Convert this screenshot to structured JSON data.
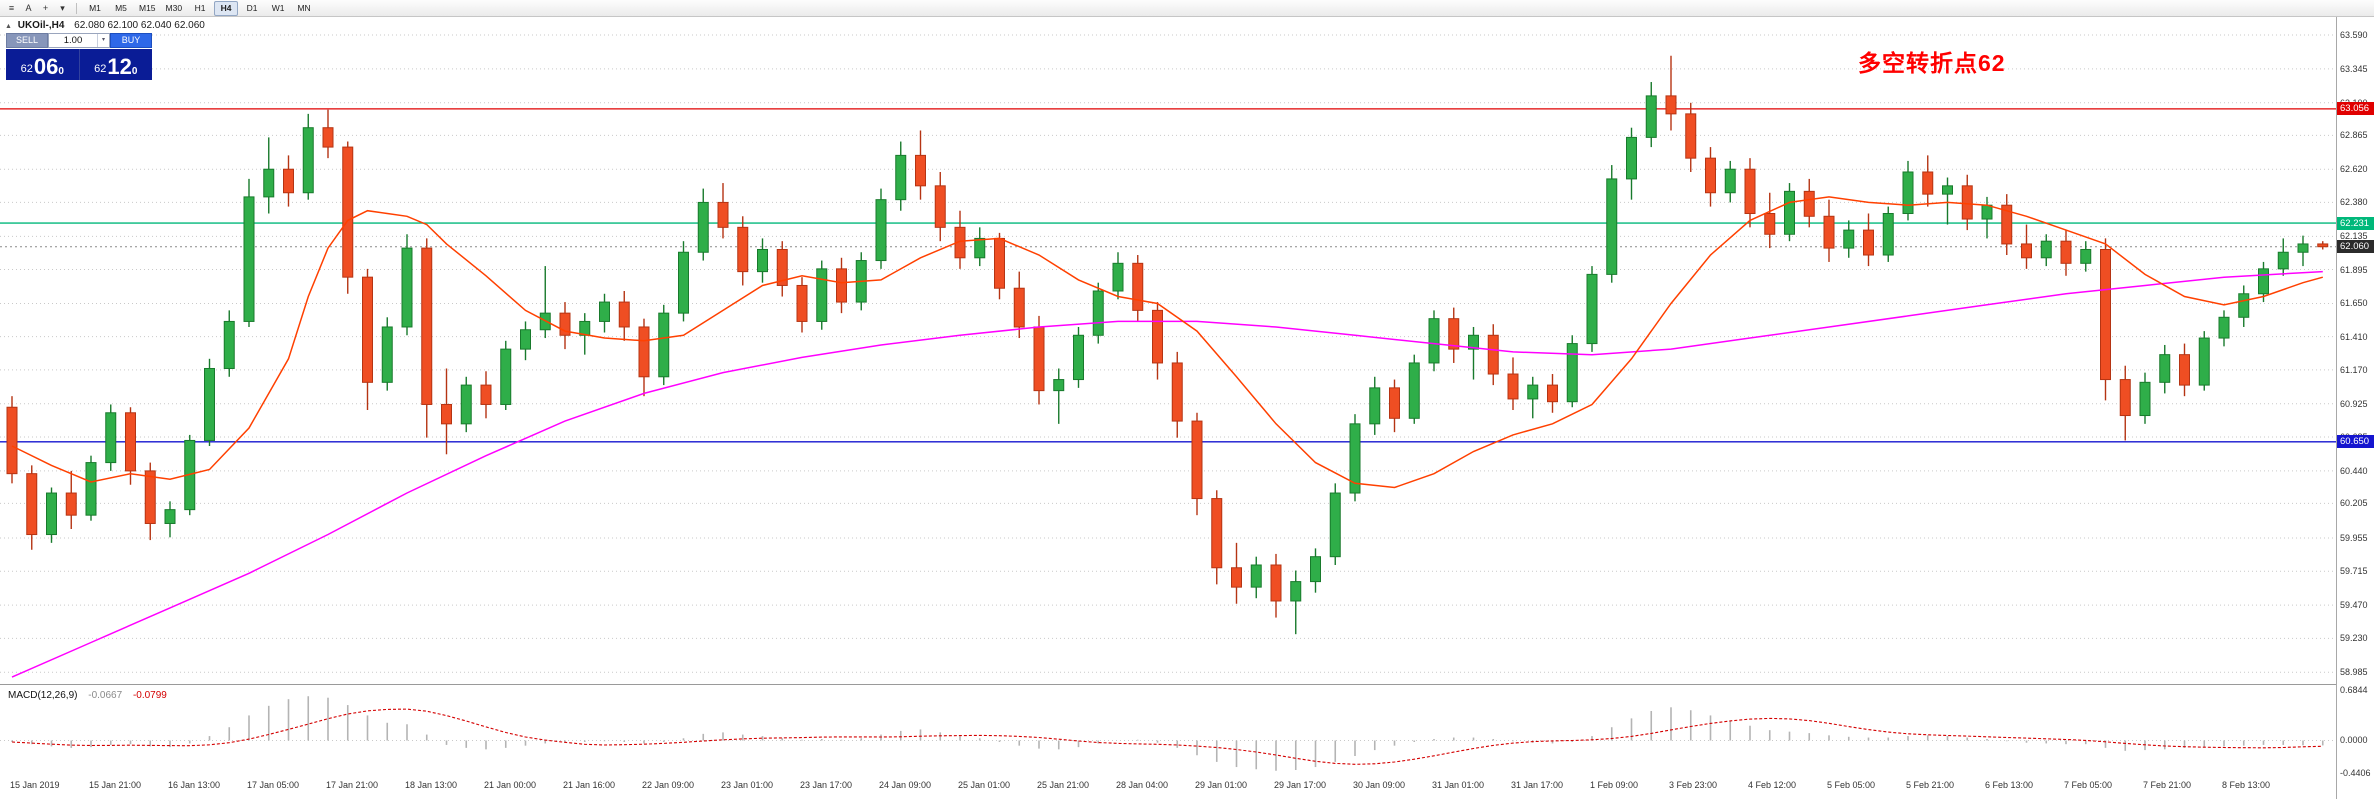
{
  "app": {
    "toolbar": {
      "icons": {
        "menu": "≡",
        "pointer": "A",
        "crosshair": "+",
        "dropdown": "▾"
      },
      "timeframes": [
        "M1",
        "M5",
        "M15",
        "M30",
        "H1",
        "H4",
        "D1",
        "W1",
        "MN"
      ],
      "active_timeframe": "H4"
    }
  },
  "chart": {
    "collapse_icon": "▲",
    "title": "UKOil-,H4",
    "ohlc_text": "62.080 62.100 62.040 62.060",
    "annotation": "多空转折点62",
    "one_click": {
      "sell_label": "SELL",
      "buy_label": "BUY",
      "volume": "1.00",
      "sell_price": {
        "fig": "62",
        "big": "06",
        "sup": "0"
      },
      "buy_price": {
        "fig": "62",
        "big": "12",
        "sup": "0"
      }
    }
  },
  "macd_panel": {
    "label": "MACD(12,26,9)",
    "value_main": "-0.0667",
    "value_signal": "-0.0799",
    "axis_labels": [
      "0.6844",
      "0.0000",
      "-0.4406"
    ]
  },
  "price_axis": {
    "labels": [
      "63.590",
      "63.345",
      "63.100",
      "62.865",
      "62.620",
      "62.380",
      "62.135",
      "61.895",
      "61.650",
      "61.410",
      "61.170",
      "60.925",
      "60.685",
      "60.440",
      "60.205",
      "59.955",
      "59.715",
      "59.470",
      "59.230",
      "58.985"
    ],
    "tags": [
      {
        "text": "63.056",
        "price": 63.056,
        "bg": "#e00000"
      },
      {
        "text": "62.231",
        "price": 62.231,
        "bg": "#00b87a"
      },
      {
        "text": "62.060",
        "price": 62.06,
        "bg": "#2b2b2b"
      },
      {
        "text": "60.650",
        "price": 60.65,
        "bg": "#1515cf"
      }
    ]
  },
  "time_axis": {
    "labels": [
      "15 Jan 2019",
      "15 Jan 21:00",
      "16 Jan 13:00",
      "17 Jan 05:00",
      "17 Jan 21:00",
      "18 Jan 13:00",
      "21 Jan 00:00",
      "21 Jan 16:00",
      "22 Jan 09:00",
      "23 Jan 01:00",
      "23 Jan 17:00",
      "24 Jan 09:00",
      "25 Jan 01:00",
      "25 Jan 21:00",
      "28 Jan 04:00",
      "29 Jan 01:00",
      "29 Jan 17:00",
      "30 Jan 09:00",
      "31 Jan 01:00",
      "31 Jan 17:00",
      "1 Feb 09:00",
      "3 Feb 23:00",
      "4 Feb 12:00",
      "5 Feb 05:00",
      "5 Feb 21:00",
      "6 Feb 13:00",
      "7 Feb 05:00",
      "7 Feb 21:00",
      "8 Feb 13:00"
    ]
  },
  "colors": {
    "bull": "#2fae49",
    "bull_border": "#187a2c",
    "bear": "#ef4e23",
    "bear_border": "#b53413",
    "ma_fast": "#ff4000",
    "ma_slow": "#ff00ff",
    "hline_red": "#e00000",
    "hline_green": "#00b87a",
    "hline_blue": "#1515cf",
    "current_price_line": "#8a8a8a",
    "grid": "#c9c9c9",
    "macd_hist": "#b4b4b4",
    "macd_signal": "#d40000",
    "annotation": "#ff0000"
  },
  "chart_data": {
    "type": "candlestick+macd",
    "symbol": "UKOil-",
    "period": "H4",
    "price_range_visible": [
      58.9,
      63.72
    ],
    "current_price": 62.06,
    "hlines": [
      {
        "price": 63.056,
        "color": "#e00000"
      },
      {
        "price": 62.231,
        "color": "#00b87a"
      },
      {
        "price": 60.65,
        "color": "#1515cf"
      }
    ],
    "candles": [
      [
        60.9,
        60.98,
        60.35,
        60.42
      ],
      [
        60.42,
        60.48,
        59.87,
        59.98
      ],
      [
        59.98,
        60.32,
        59.92,
        60.28
      ],
      [
        60.28,
        60.44,
        60.02,
        60.12
      ],
      [
        60.12,
        60.55,
        60.08,
        60.5
      ],
      [
        60.5,
        60.92,
        60.44,
        60.86
      ],
      [
        60.86,
        60.9,
        60.34,
        60.44
      ],
      [
        60.44,
        60.5,
        59.94,
        60.06
      ],
      [
        60.06,
        60.22,
        59.96,
        60.16
      ],
      [
        60.16,
        60.7,
        60.12,
        60.66
      ],
      [
        60.66,
        61.25,
        60.62,
        61.18
      ],
      [
        61.18,
        61.6,
        61.12,
        61.52
      ],
      [
        61.52,
        62.55,
        61.48,
        62.42
      ],
      [
        62.42,
        62.85,
        62.3,
        62.62
      ],
      [
        62.62,
        62.72,
        62.35,
        62.45
      ],
      [
        62.45,
        63.02,
        62.4,
        62.92
      ],
      [
        62.92,
        63.05,
        62.7,
        62.78
      ],
      [
        62.78,
        62.82,
        61.72,
        61.84
      ],
      [
        61.84,
        61.9,
        60.88,
        61.08
      ],
      [
        61.08,
        61.55,
        61.02,
        61.48
      ],
      [
        61.48,
        62.15,
        61.42,
        62.05
      ],
      [
        62.05,
        62.12,
        60.68,
        60.92
      ],
      [
        60.92,
        61.18,
        60.56,
        60.78
      ],
      [
        60.78,
        61.12,
        60.72,
        61.06
      ],
      [
        61.06,
        61.16,
        60.82,
        60.92
      ],
      [
        60.92,
        61.38,
        60.88,
        61.32
      ],
      [
        61.32,
        61.52,
        61.24,
        61.46
      ],
      [
        61.46,
        61.92,
        61.4,
        61.58
      ],
      [
        61.58,
        61.66,
        61.32,
        61.42
      ],
      [
        61.42,
        61.58,
        61.28,
        61.52
      ],
      [
        61.52,
        61.72,
        61.44,
        61.66
      ],
      [
        61.66,
        61.74,
        61.38,
        61.48
      ],
      [
        61.48,
        61.54,
        60.98,
        61.12
      ],
      [
        61.12,
        61.64,
        61.06,
        61.58
      ],
      [
        61.58,
        62.1,
        61.52,
        62.02
      ],
      [
        62.02,
        62.48,
        61.96,
        62.38
      ],
      [
        62.38,
        62.52,
        62.12,
        62.2
      ],
      [
        62.2,
        62.28,
        61.78,
        61.88
      ],
      [
        61.88,
        62.12,
        61.8,
        62.04
      ],
      [
        62.04,
        62.1,
        61.7,
        61.78
      ],
      [
        61.78,
        61.84,
        61.44,
        61.52
      ],
      [
        61.52,
        61.96,
        61.46,
        61.9
      ],
      [
        61.9,
        61.98,
        61.58,
        61.66
      ],
      [
        61.66,
        62.02,
        61.6,
        61.96
      ],
      [
        61.96,
        62.48,
        61.9,
        62.4
      ],
      [
        62.4,
        62.82,
        62.32,
        62.72
      ],
      [
        62.72,
        62.9,
        62.4,
        62.5
      ],
      [
        62.5,
        62.6,
        62.1,
        62.2
      ],
      [
        62.2,
        62.32,
        61.9,
        61.98
      ],
      [
        61.98,
        62.2,
        61.92,
        62.12
      ],
      [
        62.12,
        62.16,
        61.68,
        61.76
      ],
      [
        61.76,
        61.88,
        61.4,
        61.48
      ],
      [
        61.48,
        61.56,
        60.92,
        61.02
      ],
      [
        61.02,
        61.18,
        60.78,
        61.1
      ],
      [
        61.1,
        61.48,
        61.04,
        61.42
      ],
      [
        61.42,
        61.8,
        61.36,
        61.74
      ],
      [
        61.74,
        62.02,
        61.68,
        61.94
      ],
      [
        61.94,
        62.0,
        61.52,
        61.6
      ],
      [
        61.6,
        61.66,
        61.1,
        61.22
      ],
      [
        61.22,
        61.3,
        60.68,
        60.8
      ],
      [
        60.8,
        60.86,
        60.12,
        60.24
      ],
      [
        60.24,
        60.3,
        59.62,
        59.74
      ],
      [
        59.74,
        59.92,
        59.48,
        59.6
      ],
      [
        59.6,
        59.82,
        59.52,
        59.76
      ],
      [
        59.76,
        59.84,
        59.38,
        59.5
      ],
      [
        59.5,
        59.72,
        59.26,
        59.64
      ],
      [
        59.64,
        59.88,
        59.56,
        59.82
      ],
      [
        59.82,
        60.35,
        59.76,
        60.28
      ],
      [
        60.28,
        60.85,
        60.22,
        60.78
      ],
      [
        60.78,
        61.12,
        60.7,
        61.04
      ],
      [
        61.04,
        61.1,
        60.72,
        60.82
      ],
      [
        60.82,
        61.28,
        60.78,
        61.22
      ],
      [
        61.22,
        61.6,
        61.16,
        61.54
      ],
      [
        61.54,
        61.62,
        61.22,
        61.32
      ],
      [
        61.32,
        61.48,
        61.1,
        61.42
      ],
      [
        61.42,
        61.5,
        61.06,
        61.14
      ],
      [
        61.14,
        61.26,
        60.88,
        60.96
      ],
      [
        60.96,
        61.12,
        60.82,
        61.06
      ],
      [
        61.06,
        61.14,
        60.86,
        60.94
      ],
      [
        60.94,
        61.42,
        60.9,
        61.36
      ],
      [
        61.36,
        61.92,
        61.3,
        61.86
      ],
      [
        61.86,
        62.65,
        61.8,
        62.55
      ],
      [
        62.55,
        62.92,
        62.4,
        62.85
      ],
      [
        62.85,
        63.25,
        62.78,
        63.15
      ],
      [
        63.15,
        63.44,
        62.9,
        63.02
      ],
      [
        63.02,
        63.1,
        62.6,
        62.7
      ],
      [
        62.7,
        62.78,
        62.35,
        62.45
      ],
      [
        62.45,
        62.68,
        62.38,
        62.62
      ],
      [
        62.62,
        62.7,
        62.2,
        62.3
      ],
      [
        62.3,
        62.45,
        62.05,
        62.15
      ],
      [
        62.15,
        62.52,
        62.1,
        62.46
      ],
      [
        62.46,
        62.55,
        62.2,
        62.28
      ],
      [
        62.28,
        62.4,
        61.95,
        62.05
      ],
      [
        62.05,
        62.25,
        61.98,
        62.18
      ],
      [
        62.18,
        62.3,
        61.92,
        62.0
      ],
      [
        62.0,
        62.35,
        61.95,
        62.3
      ],
      [
        62.3,
        62.68,
        62.25,
        62.6
      ],
      [
        62.6,
        62.72,
        62.35,
        62.44
      ],
      [
        62.44,
        62.56,
        62.22,
        62.5
      ],
      [
        62.5,
        62.58,
        62.18,
        62.26
      ],
      [
        62.26,
        62.42,
        62.12,
        62.36
      ],
      [
        62.36,
        62.44,
        62.0,
        62.08
      ],
      [
        62.08,
        62.22,
        61.9,
        61.98
      ],
      [
        61.98,
        62.15,
        61.92,
        62.1
      ],
      [
        62.1,
        62.18,
        61.85,
        61.94
      ],
      [
        61.94,
        62.1,
        61.88,
        62.04
      ],
      [
        62.04,
        62.12,
        60.95,
        61.1
      ],
      [
        61.1,
        61.2,
        60.66,
        60.84
      ],
      [
        60.84,
        61.15,
        60.78,
        61.08
      ],
      [
        61.08,
        61.35,
        61.0,
        61.28
      ],
      [
        61.28,
        61.36,
        60.98,
        61.06
      ],
      [
        61.06,
        61.45,
        61.02,
        61.4
      ],
      [
        61.4,
        61.6,
        61.34,
        61.55
      ],
      [
        61.55,
        61.78,
        61.48,
        61.72
      ],
      [
        61.72,
        61.95,
        61.66,
        61.9
      ],
      [
        61.9,
        62.12,
        61.85,
        62.02
      ],
      [
        62.02,
        62.14,
        61.92,
        62.08
      ],
      [
        62.08,
        62.1,
        62.04,
        62.06
      ]
    ],
    "ma_fast": [
      [
        0,
        60.62
      ],
      [
        2,
        60.48
      ],
      [
        4,
        60.36
      ],
      [
        6,
        60.42
      ],
      [
        8,
        60.38
      ],
      [
        10,
        60.45
      ],
      [
        12,
        60.75
      ],
      [
        14,
        61.25
      ],
      [
        15,
        61.7
      ],
      [
        16,
        62.05
      ],
      [
        17,
        62.25
      ],
      [
        18,
        62.32
      ],
      [
        19,
        62.3
      ],
      [
        20,
        62.28
      ],
      [
        21,
        62.22
      ],
      [
        22,
        62.08
      ],
      [
        24,
        61.85
      ],
      [
        26,
        61.6
      ],
      [
        28,
        61.45
      ],
      [
        30,
        61.4
      ],
      [
        32,
        61.38
      ],
      [
        34,
        61.42
      ],
      [
        36,
        61.6
      ],
      [
        38,
        61.78
      ],
      [
        40,
        61.85
      ],
      [
        42,
        61.8
      ],
      [
        44,
        61.82
      ],
      [
        46,
        61.98
      ],
      [
        48,
        62.1
      ],
      [
        50,
        62.12
      ],
      [
        52,
        62.0
      ],
      [
        54,
        61.82
      ],
      [
        56,
        61.7
      ],
      [
        58,
        61.65
      ],
      [
        60,
        61.45
      ],
      [
        62,
        61.12
      ],
      [
        64,
        60.78
      ],
      [
        66,
        60.5
      ],
      [
        68,
        60.35
      ],
      [
        70,
        60.32
      ],
      [
        72,
        60.42
      ],
      [
        74,
        60.58
      ],
      [
        76,
        60.7
      ],
      [
        78,
        60.78
      ],
      [
        80,
        60.92
      ],
      [
        82,
        61.25
      ],
      [
        84,
        61.65
      ],
      [
        86,
        62.0
      ],
      [
        88,
        62.25
      ],
      [
        90,
        62.38
      ],
      [
        92,
        62.42
      ],
      [
        94,
        62.38
      ],
      [
        96,
        62.36
      ],
      [
        98,
        62.38
      ],
      [
        100,
        62.36
      ],
      [
        102,
        62.28
      ],
      [
        104,
        62.18
      ],
      [
        106,
        62.08
      ],
      [
        108,
        61.86
      ],
      [
        110,
        61.7
      ],
      [
        112,
        61.64
      ],
      [
        114,
        61.7
      ],
      [
        116,
        61.8
      ],
      [
        117,
        61.84
      ]
    ],
    "ma_slow": [
      [
        0,
        58.95
      ],
      [
        4,
        59.2
      ],
      [
        8,
        59.45
      ],
      [
        12,
        59.7
      ],
      [
        16,
        59.98
      ],
      [
        20,
        60.28
      ],
      [
        24,
        60.55
      ],
      [
        28,
        60.8
      ],
      [
        32,
        61.0
      ],
      [
        36,
        61.15
      ],
      [
        40,
        61.26
      ],
      [
        44,
        61.35
      ],
      [
        48,
        61.42
      ],
      [
        52,
        61.48
      ],
      [
        56,
        61.52
      ],
      [
        60,
        61.52
      ],
      [
        64,
        61.48
      ],
      [
        68,
        61.42
      ],
      [
        72,
        61.36
      ],
      [
        76,
        61.3
      ],
      [
        80,
        61.28
      ],
      [
        84,
        61.32
      ],
      [
        88,
        61.4
      ],
      [
        92,
        61.48
      ],
      [
        96,
        61.56
      ],
      [
        100,
        61.64
      ],
      [
        104,
        61.72
      ],
      [
        108,
        61.78
      ],
      [
        112,
        61.84
      ],
      [
        117,
        61.88
      ]
    ],
    "macd_range": [
      -0.4406,
      0.6844
    ],
    "macd_hist": [
      -0.02,
      -0.05,
      -0.08,
      -0.1,
      -0.09,
      -0.06,
      -0.05,
      -0.08,
      -0.09,
      -0.04,
      0.06,
      0.18,
      0.34,
      0.47,
      0.56,
      0.6,
      0.58,
      0.48,
      0.34,
      0.24,
      0.22,
      0.08,
      -0.06,
      -0.1,
      -0.12,
      -0.1,
      -0.07,
      -0.04,
      -0.03,
      -0.02,
      -0.01,
      -0.02,
      -0.04,
      -0.02,
      0.03,
      0.09,
      0.11,
      0.08,
      0.06,
      0.03,
      0.01,
      0.02,
      0.01,
      0.03,
      0.08,
      0.13,
      0.15,
      0.11,
      0.06,
      0.03,
      -0.02,
      -0.07,
      -0.11,
      -0.12,
      -0.09,
      -0.04,
      0.0,
      0.01,
      -0.03,
      -0.1,
      -0.2,
      -0.29,
      -0.36,
      -0.39,
      -0.41,
      -0.4,
      -0.36,
      -0.29,
      -0.21,
      -0.13,
      -0.07,
      -0.02,
      0.02,
      0.04,
      0.04,
      0.02,
      -0.01,
      -0.03,
      -0.04,
      -0.02,
      0.06,
      0.18,
      0.3,
      0.4,
      0.45,
      0.41,
      0.34,
      0.27,
      0.2,
      0.14,
      0.12,
      0.1,
      0.07,
      0.05,
      0.04,
      0.04,
      0.06,
      0.07,
      0.06,
      0.04,
      0.02,
      -0.01,
      -0.03,
      -0.04,
      -0.05,
      -0.05,
      -0.1,
      -0.14,
      -0.13,
      -0.12,
      -0.1,
      -0.09,
      -0.08,
      -0.07,
      -0.06,
      -0.06,
      -0.065,
      -0.0667
    ]
  }
}
